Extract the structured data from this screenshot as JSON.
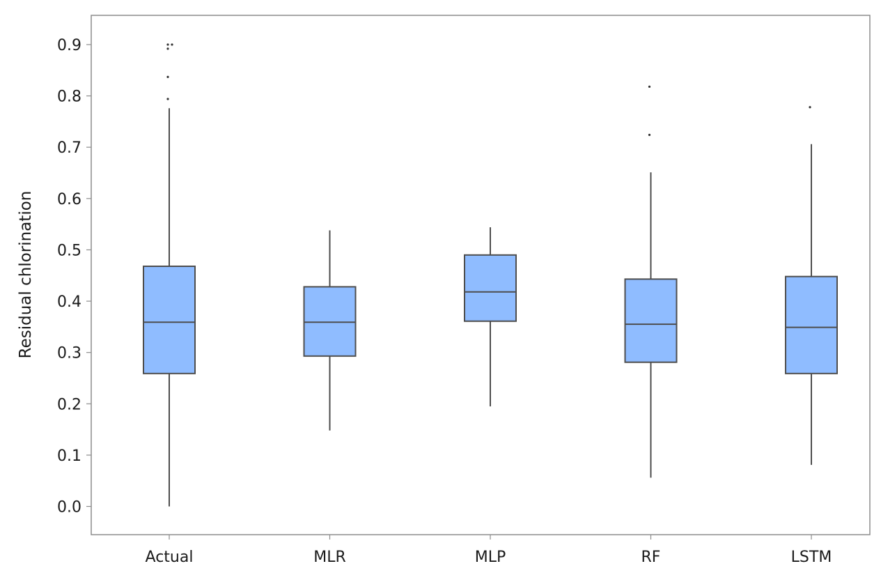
{
  "chart_data": {
    "type": "box",
    "title": "",
    "xlabel": "",
    "ylabel": "Residual chlorination",
    "ylim": [
      -0.055,
      0.957
    ],
    "yticks": [
      "0.0",
      "0.1",
      "0.2",
      "0.3",
      "0.4",
      "0.5",
      "0.6",
      "0.7",
      "0.8",
      "0.9"
    ],
    "grid": false,
    "legend": "none",
    "box_color": "#8fbcff",
    "line_color": "#4d4d4d",
    "categories": [
      "Actual",
      "MLR",
      "MLP",
      "RF",
      "LSTM"
    ],
    "boxes": [
      {
        "name": "Actual",
        "whisker_low": 0.0,
        "q1": 0.259,
        "median": 0.359,
        "q3": 0.468,
        "whisker_high": 0.776,
        "outliers": [
          0.794,
          0.837,
          0.892,
          0.9,
          0.9
        ]
      },
      {
        "name": "MLR",
        "whisker_low": 0.148,
        "q1": 0.293,
        "median": 0.359,
        "q3": 0.428,
        "whisker_high": 0.538,
        "outliers": []
      },
      {
        "name": "MLP",
        "whisker_low": 0.195,
        "q1": 0.361,
        "median": 0.418,
        "q3": 0.49,
        "whisker_high": 0.544,
        "outliers": []
      },
      {
        "name": "RF",
        "whisker_low": 0.056,
        "q1": 0.281,
        "median": 0.355,
        "q3": 0.443,
        "whisker_high": 0.651,
        "outliers": [
          0.724,
          0.818
        ]
      },
      {
        "name": "LSTM",
        "whisker_low": 0.081,
        "q1": 0.259,
        "median": 0.349,
        "q3": 0.448,
        "whisker_high": 0.706,
        "outliers": [
          0.778
        ]
      }
    ]
  }
}
